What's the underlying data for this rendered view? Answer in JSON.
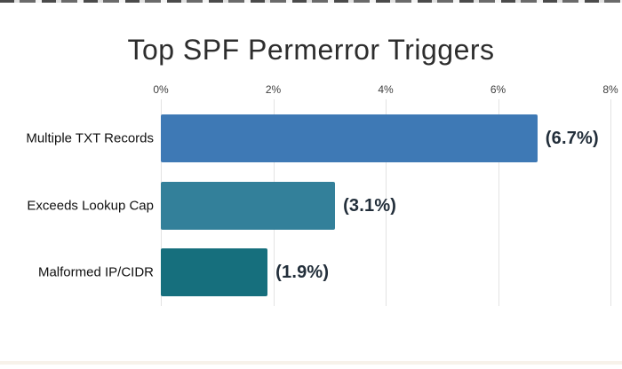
{
  "title": "Top SPF Permerror Triggers",
  "chart_data": {
    "type": "bar",
    "orientation": "horizontal",
    "title": "Top SPF Permerror Triggers",
    "categories": [
      "Multiple TXT Records",
      "Exceeds Lookup Cap",
      "Malformed IP/CIDR"
    ],
    "values": [
      6.7,
      3.1,
      1.9
    ],
    "value_labels": [
      "(6.7%)",
      "(3.1%)",
      "(1.9%)"
    ],
    "bar_colors": [
      "#3e79b5",
      "#33809a",
      "#166f7d"
    ],
    "xlabel": "",
    "ylabel": "",
    "xlim": [
      0,
      8
    ],
    "x_tick_values": [
      0,
      2,
      4,
      6,
      8
    ],
    "x_tick_labels": [
      "0%",
      "2%",
      "4%",
      "6%",
      "8%"
    ],
    "grid": "vertical-only",
    "legend": "none",
    "tick_position": "top"
  },
  "style": {
    "background": "#ffffff",
    "grid_color": "#e3e3e3",
    "title_color": "#2d2d2d",
    "tick_color": "#3f3f3f",
    "category_color": "#101010",
    "value_color": "#222e3a"
  }
}
